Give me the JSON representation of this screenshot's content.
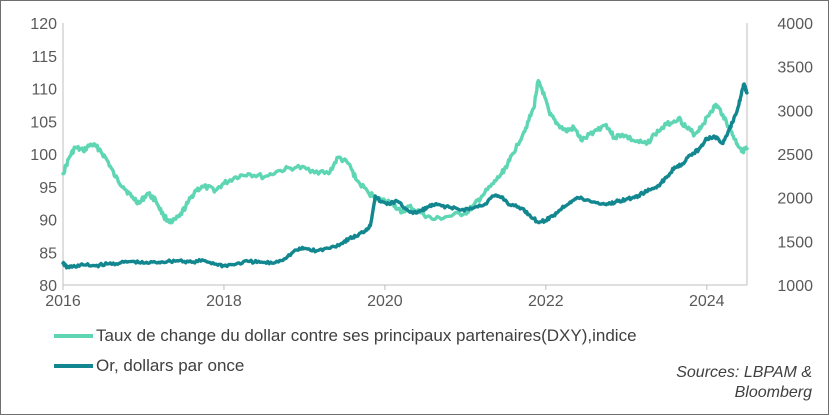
{
  "chart_data": {
    "type": "line",
    "x_ticks": [
      "2016",
      "2018",
      "2020",
      "2022",
      "2024"
    ],
    "y_left_ticks": [
      "80",
      "85",
      "90",
      "95",
      "100",
      "105",
      "110",
      "115",
      "120"
    ],
    "y_right_ticks": [
      "1000",
      "1500",
      "2000",
      "2500",
      "3000",
      "3500",
      "4000"
    ],
    "y_left_range": [
      80,
      120
    ],
    "y_right_range": [
      1000,
      4000
    ],
    "x_range": [
      2016.0,
      2024.5
    ],
    "grid": false,
    "legend_position": "bottom-left",
    "series": [
      {
        "name": "Taux de change du dollar contre ses principaux partenaires(DXY),indice",
        "axis": "left",
        "color": "#5ed6b4",
        "points": [
          [
            2016.0,
            97.0
          ],
          [
            2016.08,
            99.5
          ],
          [
            2016.15,
            101.0
          ],
          [
            2016.25,
            100.5
          ],
          [
            2016.35,
            101.5
          ],
          [
            2016.45,
            100.8
          ],
          [
            2016.55,
            99.0
          ],
          [
            2016.65,
            96.5
          ],
          [
            2016.75,
            95.0
          ],
          [
            2016.85,
            93.5
          ],
          [
            2016.95,
            92.5
          ],
          [
            2017.05,
            94.0
          ],
          [
            2017.15,
            93.0
          ],
          [
            2017.25,
            90.5
          ],
          [
            2017.35,
            89.5
          ],
          [
            2017.45,
            90.5
          ],
          [
            2017.55,
            92.5
          ],
          [
            2017.65,
            94.5
          ],
          [
            2017.75,
            95.0
          ],
          [
            2017.9,
            94.5
          ],
          [
            2018.0,
            95.5
          ],
          [
            2018.15,
            96.5
          ],
          [
            2018.3,
            97.0
          ],
          [
            2018.5,
            96.5
          ],
          [
            2018.7,
            97.5
          ],
          [
            2018.9,
            98.0
          ],
          [
            2019.1,
            97.5
          ],
          [
            2019.3,
            97.0
          ],
          [
            2019.42,
            99.5
          ],
          [
            2019.55,
            98.5
          ],
          [
            2019.65,
            96.0
          ],
          [
            2019.8,
            94.0
          ],
          [
            2019.95,
            93.0
          ],
          [
            2020.1,
            92.5
          ],
          [
            2020.2,
            91.0
          ],
          [
            2020.3,
            92.0
          ],
          [
            2020.45,
            91.0
          ],
          [
            2020.6,
            90.0
          ],
          [
            2020.8,
            90.5
          ],
          [
            2021.0,
            91.0
          ],
          [
            2021.1,
            92.0
          ],
          [
            2021.2,
            93.5
          ],
          [
            2021.35,
            95.5
          ],
          [
            2021.45,
            97.0
          ],
          [
            2021.55,
            99.0
          ],
          [
            2021.65,
            101.5
          ],
          [
            2021.75,
            104.0
          ],
          [
            2021.85,
            107.0
          ],
          [
            2021.9,
            111.0
          ],
          [
            2021.95,
            110.0
          ],
          [
            2022.05,
            106.0
          ],
          [
            2022.15,
            104.5
          ],
          [
            2022.25,
            103.5
          ],
          [
            2022.35,
            104.0
          ],
          [
            2022.45,
            102.0
          ],
          [
            2022.6,
            103.5
          ],
          [
            2022.75,
            104.5
          ],
          [
            2022.85,
            102.5
          ],
          [
            2022.95,
            103.0
          ],
          [
            2023.1,
            102.0
          ],
          [
            2023.25,
            101.5
          ],
          [
            2023.35,
            103.0
          ],
          [
            2023.5,
            104.5
          ],
          [
            2023.65,
            105.5
          ],
          [
            2023.75,
            104.0
          ],
          [
            2023.85,
            103.0
          ],
          [
            2023.95,
            104.5
          ],
          [
            2024.05,
            106.5
          ],
          [
            2024.12,
            107.5
          ],
          [
            2024.2,
            106.0
          ],
          [
            2024.3,
            103.5
          ],
          [
            2024.38,
            101.5
          ],
          [
            2024.45,
            100.5
          ],
          [
            2024.5,
            100.8
          ]
        ]
      },
      {
        "name": "Or, dollars par once",
        "axis": "right",
        "color": "#13878f",
        "points": [
          [
            2016.0,
            1250
          ],
          [
            2016.05,
            1200
          ],
          [
            2016.12,
            1210
          ],
          [
            2016.25,
            1230
          ],
          [
            2016.4,
            1220
          ],
          [
            2016.55,
            1240
          ],
          [
            2016.7,
            1250
          ],
          [
            2016.85,
            1270
          ],
          [
            2017.0,
            1250
          ],
          [
            2017.15,
            1260
          ],
          [
            2017.3,
            1270
          ],
          [
            2017.45,
            1280
          ],
          [
            2017.6,
            1260
          ],
          [
            2017.75,
            1280
          ],
          [
            2017.9,
            1240
          ],
          [
            2018.0,
            1220
          ],
          [
            2018.15,
            1240
          ],
          [
            2018.3,
            1270
          ],
          [
            2018.45,
            1260
          ],
          [
            2018.6,
            1250
          ],
          [
            2018.75,
            1300
          ],
          [
            2018.9,
            1400
          ],
          [
            2019.0,
            1420
          ],
          [
            2019.15,
            1390
          ],
          [
            2019.3,
            1420
          ],
          [
            2019.45,
            1470
          ],
          [
            2019.55,
            1530
          ],
          [
            2019.65,
            1560
          ],
          [
            2019.75,
            1620
          ],
          [
            2019.82,
            1680
          ],
          [
            2019.88,
            2020
          ],
          [
            2019.95,
            1950
          ],
          [
            2020.05,
            1930
          ],
          [
            2020.15,
            1960
          ],
          [
            2020.25,
            1880
          ],
          [
            2020.35,
            1820
          ],
          [
            2020.45,
            1850
          ],
          [
            2020.55,
            1900
          ],
          [
            2020.65,
            1920
          ],
          [
            2020.8,
            1890
          ],
          [
            2020.95,
            1860
          ],
          [
            2021.1,
            1880
          ],
          [
            2021.25,
            1930
          ],
          [
            2021.35,
            2020
          ],
          [
            2021.45,
            2010
          ],
          [
            2021.55,
            1920
          ],
          [
            2021.7,
            1880
          ],
          [
            2021.8,
            1800
          ],
          [
            2021.9,
            1720
          ],
          [
            2022.0,
            1740
          ],
          [
            2022.1,
            1800
          ],
          [
            2022.2,
            1880
          ],
          [
            2022.3,
            1950
          ],
          [
            2022.4,
            2000
          ],
          [
            2022.55,
            1960
          ],
          [
            2022.7,
            1930
          ],
          [
            2022.8,
            1930
          ],
          [
            2022.9,
            1960
          ],
          [
            2023.0,
            1980
          ],
          [
            2023.1,
            2000
          ],
          [
            2023.2,
            2050
          ],
          [
            2023.3,
            2090
          ],
          [
            2023.4,
            2140
          ],
          [
            2023.5,
            2230
          ],
          [
            2023.6,
            2350
          ],
          [
            2023.7,
            2390
          ],
          [
            2023.8,
            2490
          ],
          [
            2023.9,
            2550
          ],
          [
            2024.0,
            2680
          ],
          [
            2024.1,
            2700
          ],
          [
            2024.2,
            2620
          ],
          [
            2024.28,
            2780
          ],
          [
            2024.36,
            2950
          ],
          [
            2024.42,
            3150
          ],
          [
            2024.46,
            3300
          ],
          [
            2024.5,
            3200
          ]
        ]
      }
    ]
  },
  "source": {
    "line1": "Sources: LBPAM &",
    "line2": "Bloomberg"
  }
}
